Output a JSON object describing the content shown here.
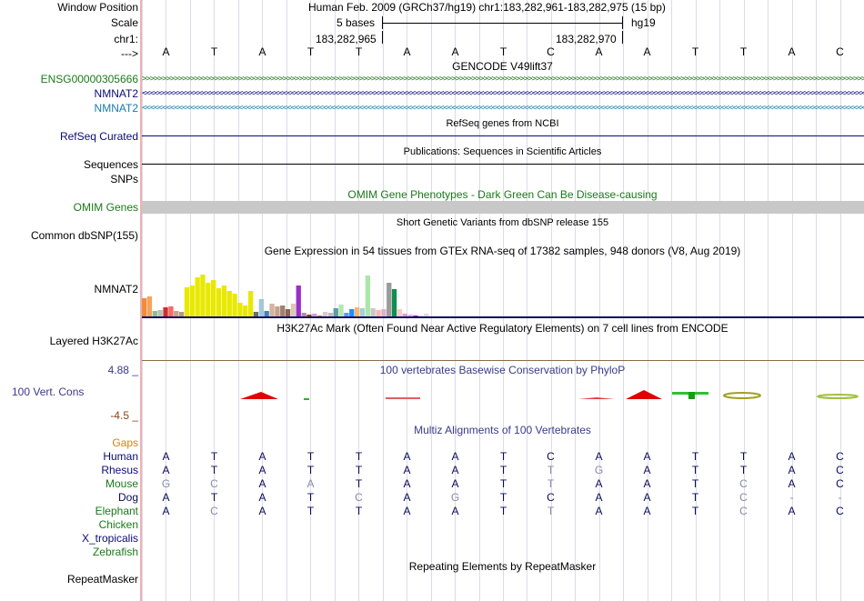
{
  "header": {
    "window_position_label": "Window Position",
    "scale_label": "Scale",
    "chrom_label": "chr1:",
    "arrow_label": "--->",
    "assembly_title": "Human Feb. 2009 (GRCh37/hg19)   chr1:183,282,961-183,282,975 (15 bp)",
    "scale_text": "5 bases",
    "scale_db": "hg19",
    "coord_left": "183,282,965",
    "coord_right": "183,282,970"
  },
  "bases": [
    "A",
    "T",
    "A",
    "T",
    "T",
    "A",
    "A",
    "T",
    "C",
    "A",
    "A",
    "T",
    "T",
    "A",
    "C"
  ],
  "tracks": {
    "gencode": {
      "title": "GENCODE V49lift37",
      "rows": [
        {
          "label": "ENSG00000305666",
          "color": "#1a7a1a",
          "glyph": ">"
        },
        {
          "label": "NMNAT2",
          "color": "#0b0b7a",
          "glyph": "<"
        },
        {
          "label": "NMNAT2",
          "color": "#1a7aa8",
          "glyph": "<"
        }
      ]
    },
    "refseq": {
      "title": "RefSeq genes from NCBI",
      "label": "RefSeq Curated",
      "color": "#0b0b7a"
    },
    "publications": {
      "title": "Publications: Sequences in Scientific Articles",
      "label1": "Sequences",
      "label2": "SNPs"
    },
    "omim": {
      "title": "OMIM Gene Phenotypes - Dark Green Can Be Disease-causing",
      "label": "OMIM Genes",
      "color": "#1a7a1a"
    },
    "dbsnp": {
      "title": "Short Genetic Variants from dbSNP release 155",
      "label": "Common dbSNP(155)"
    },
    "gtex": {
      "title": "Gene Expression in 54 tissues from GTEx RNA-seq of 17382 samples, 948 donors (V8, Aug 2019)",
      "label": "NMNAT2"
    },
    "h3k27ac": {
      "title": "H3K27Ac Mark (Often Found Near Active Regulatory Elements) on 7 cell lines from ENCODE",
      "label": "Layered H3K27Ac"
    },
    "phylop": {
      "title": "100 vertebrates Basewise Conservation by PhyloP",
      "label": "100 Vert. Cons",
      "max_label": "4.88 _",
      "min_label": "-4.5 _"
    },
    "multiz": {
      "title": "Multiz Alignments of 100 Vertebrates",
      "gaps_label": "Gaps",
      "species": [
        {
          "name": "Human",
          "bases": [
            "A",
            "T",
            "A",
            "T",
            "T",
            "A",
            "A",
            "T",
            "C",
            "A",
            "A",
            "T",
            "T",
            "A",
            "C"
          ],
          "dim": []
        },
        {
          "name": "Rhesus",
          "bases": [
            "A",
            "T",
            "A",
            "T",
            "T",
            "A",
            "A",
            "T",
            "T",
            "G",
            "A",
            "T",
            "T",
            "A",
            "C"
          ],
          "dim": [
            8,
            9
          ]
        },
        {
          "name": "Mouse",
          "bases": [
            "G",
            "C",
            "A",
            "A",
            "T",
            "A",
            "A",
            "T",
            "T",
            "A",
            "A",
            "T",
            "C",
            "A",
            "C"
          ],
          "dim": [
            0,
            1,
            3,
            8,
            12
          ]
        },
        {
          "name": "Dog",
          "bases": [
            "A",
            "T",
            "A",
            "T",
            "C",
            "A",
            "G",
            "T",
            "C",
            "A",
            "A",
            "T",
            "C",
            "-",
            "-"
          ],
          "dim": [
            4,
            6,
            12,
            13,
            14
          ]
        },
        {
          "name": "Elephant",
          "bases": [
            "A",
            "C",
            "A",
            "T",
            "T",
            "A",
            "A",
            "T",
            "T",
            "A",
            "A",
            "T",
            "C",
            "A",
            "C"
          ],
          "dim": [
            1,
            8,
            12
          ]
        },
        {
          "name": "Chicken",
          "bases": [],
          "dim": []
        },
        {
          "name": "X_tropicalis",
          "bases": [],
          "dim": []
        },
        {
          "name": "Zebrafish",
          "bases": [],
          "dim": []
        }
      ]
    },
    "repeatmasker": {
      "title": "Repeating Elements by RepeatMasker",
      "label": "RepeatMasker"
    }
  },
  "chart_data": {
    "type": "bar",
    "title": "Gene Expression in 54 tissues from GTEx RNA-seq of 17382 samples, 948 donors (V8, Aug 2019)",
    "ylim": [
      0,
      66
    ],
    "values": [
      20,
      22,
      6,
      7,
      10,
      11,
      6,
      5,
      32,
      34,
      43,
      46,
      37,
      40,
      31,
      34,
      28,
      25,
      15,
      12,
      28,
      5,
      19,
      6,
      14,
      11,
      12,
      8,
      14,
      34,
      4,
      2,
      3,
      1,
      5,
      4,
      9,
      13,
      4,
      8,
      10,
      9,
      45,
      9,
      7,
      8,
      37,
      30,
      8,
      3,
      2,
      1,
      1,
      3
    ],
    "colors": [
      "#f28c3c",
      "#f5a45c",
      "#8fbc8f",
      "#b0c4b0",
      "#d22d2d",
      "#ff6666",
      "#c4a484",
      "#b89a7a",
      "#e8e800",
      "#e8e800",
      "#e8e800",
      "#e8e800",
      "#e8e800",
      "#e8e800",
      "#e8e800",
      "#e8e800",
      "#e8e800",
      "#e8e800",
      "#e8e800",
      "#e8e800",
      "#e8e800",
      "#6b6b6b",
      "#a0c8d8",
      "#4682b4",
      "#d2b4a0",
      "#c8a08c",
      "#a08070",
      "#8c6450",
      "#dcc8b4",
      "#9b30c8",
      "#b48ca0",
      "#8b4513",
      "#c8a0c8",
      "#cd853f",
      "#dcc8c8",
      "#bebebe",
      "#5f9ea0",
      "#b4e6b4",
      "#6495ed",
      "#1e90ff",
      "#ffb46e",
      "#a0d2dc",
      "#aae6aa",
      "#c8c8c8",
      "#ffb4b4",
      "#dcb4c8",
      "#9b9b9b",
      "#0f8f4f",
      "#ffc8c8",
      "#d2a0d2",
      "#e6aae6",
      "#cc00cc",
      "#ffd2ff",
      "#dcdcdc"
    ]
  }
}
